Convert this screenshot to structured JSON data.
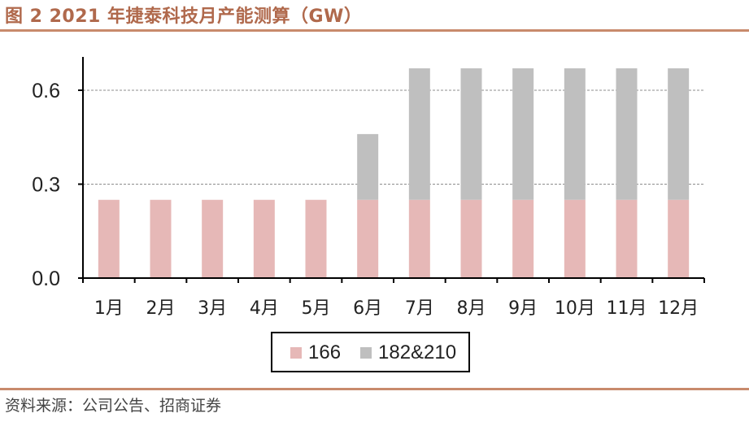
{
  "title": "图 2 2021 年捷泰科技月产能测算（GW）",
  "source": "资料来源：公司公告、招商证券",
  "colors": {
    "accent": "#c88a6c",
    "series_166": "#e6b8b7",
    "series_182_210": "#bfbfbf"
  },
  "chart_data": {
    "type": "bar",
    "stacked": true,
    "title": "",
    "xlabel": "",
    "ylabel": "",
    "categories": [
      "1月",
      "2月",
      "3月",
      "4月",
      "5月",
      "6月",
      "7月",
      "8月",
      "9月",
      "10月",
      "11月",
      "12月"
    ],
    "series": [
      {
        "name": "166",
        "values": [
          0.25,
          0.25,
          0.25,
          0.25,
          0.25,
          0.25,
          0.25,
          0.25,
          0.25,
          0.25,
          0.25,
          0.25
        ]
      },
      {
        "name": "182&210",
        "values": [
          0,
          0,
          0,
          0,
          0,
          0.21,
          0.42,
          0.42,
          0.42,
          0.42,
          0.42,
          0.42
        ]
      }
    ],
    "ylim": [
      0,
      0.6
    ],
    "yticks": [
      "0.0",
      "0.3",
      "0.6"
    ],
    "grid": true,
    "legend_position": "bottom"
  }
}
